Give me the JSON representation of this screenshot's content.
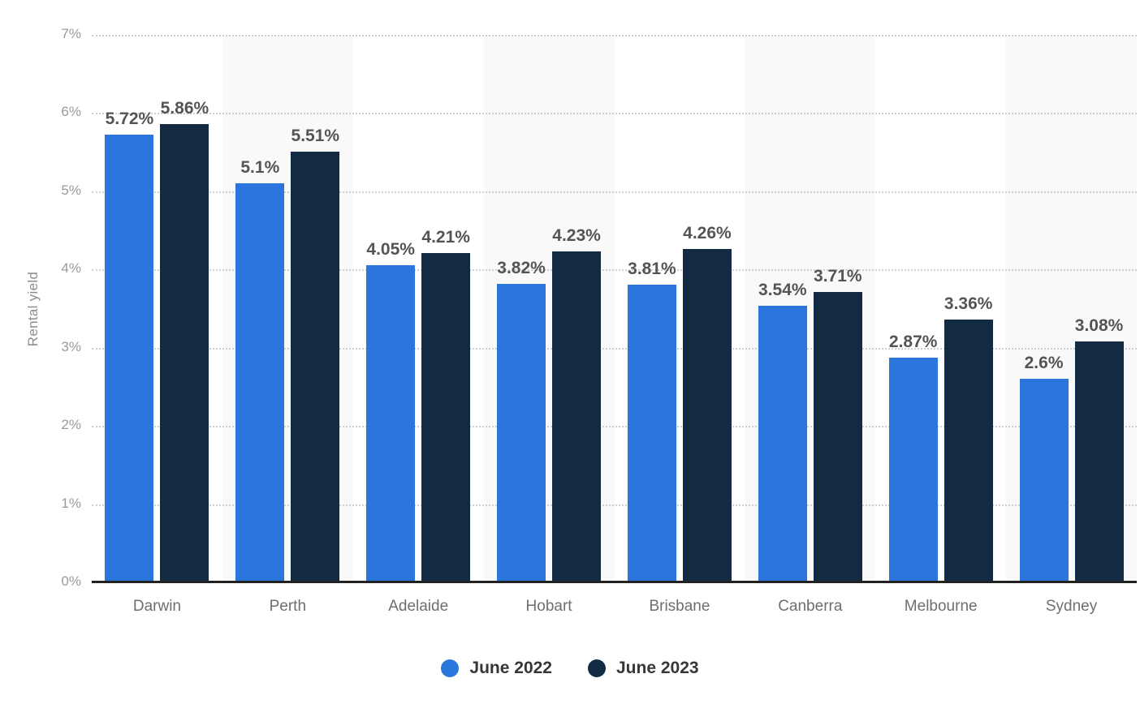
{
  "chart_data": {
    "type": "bar",
    "title": "",
    "xlabel": "",
    "ylabel": "Rental yield",
    "ylim": [
      0,
      7
    ],
    "yticks": [
      "0%",
      "1%",
      "2%",
      "3%",
      "4%",
      "5%",
      "6%",
      "7%"
    ],
    "grid": true,
    "legend_position": "bottom",
    "categories": [
      "Darwin",
      "Perth",
      "Adelaide",
      "Hobart",
      "Brisbane",
      "Canberra",
      "Melbourne",
      "Sydney"
    ],
    "series": [
      {
        "name": "June 2022",
        "color": "#2a76dd",
        "values": [
          5.72,
          5.1,
          4.05,
          3.82,
          3.81,
          3.54,
          2.87,
          2.6
        ],
        "labels": [
          "5.72%",
          "5.1%",
          "4.05%",
          "3.82%",
          "3.81%",
          "3.54%",
          "2.87%",
          "2.6%"
        ]
      },
      {
        "name": "June 2023",
        "color": "#122b42",
        "values": [
          5.86,
          5.51,
          4.21,
          4.23,
          4.26,
          3.71,
          3.36,
          3.08
        ],
        "labels": [
          "5.86%",
          "5.51%",
          "4.21%",
          "4.23%",
          "4.26%",
          "3.71%",
          "3.36%",
          "3.08%"
        ]
      }
    ],
    "colors": {
      "band_stripe": "#f9f9f9",
      "band_base": "#ffffff",
      "gridline": "#cfcfcf",
      "axis_line": "#222222"
    }
  }
}
